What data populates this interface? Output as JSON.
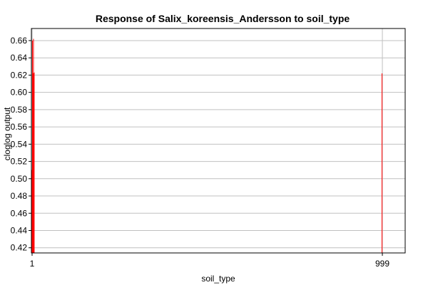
{
  "chart_data": {
    "type": "bar",
    "title": "Response of Salix_koreensis_Andersson to soil_type",
    "xlabel": "soil_type",
    "ylabel": "cloglog output",
    "ylim": [
      0.414,
      0.674
    ],
    "yticks": [
      "0.42",
      "0.44",
      "0.46",
      "0.48",
      "0.50",
      "0.52",
      "0.54",
      "0.56",
      "0.58",
      "0.60",
      "0.62",
      "0.64",
      "0.66"
    ],
    "xticks": [
      {
        "label": "1",
        "value": 1
      },
      {
        "label": "999",
        "value": 999
      }
    ],
    "xlim": [
      -1,
      1064
    ],
    "grid": true,
    "bar_color": "#ff0000",
    "bars": [
      {
        "x": 1,
        "value": 0.51
      },
      {
        "x": 2,
        "value": 0.66
      },
      {
        "x": 3,
        "value": 0.622
      },
      {
        "x": 4,
        "value": 0.555
      },
      {
        "x": 5,
        "value": 0.662
      },
      {
        "x": 6,
        "value": 0.622
      },
      {
        "x": 7,
        "value": 0.623
      },
      {
        "x": 998,
        "value": 0.622
      }
    ]
  }
}
